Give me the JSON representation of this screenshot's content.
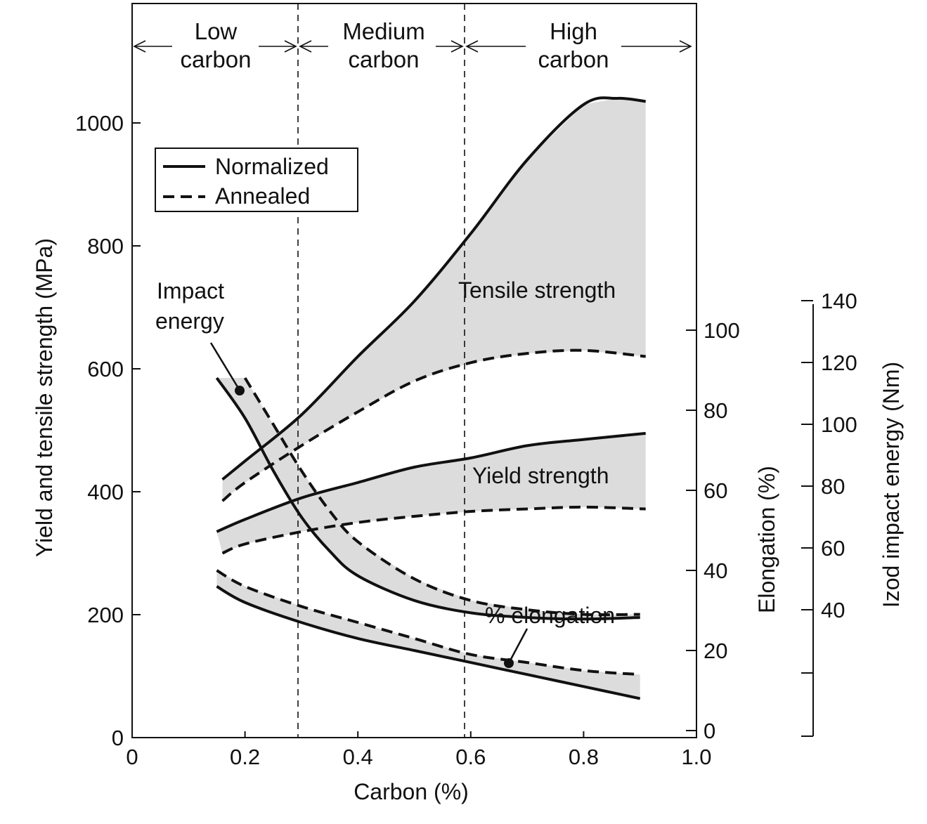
{
  "chart_data": {
    "type": "line",
    "xlabel": "Carbon (%)",
    "ylabel_left": "Yield and tensile strength (MPa)",
    "ylabel_right_1": "Elongation (%)",
    "ylabel_right_2": "Izod impact energy (Nm)",
    "xlim": [
      0,
      1.0
    ],
    "ylim_left": [
      0,
      1100
    ],
    "ylim_elongation": [
      0,
      100
    ],
    "ylim_impact": [
      40,
      140
    ],
    "x_ticks": [
      "0",
      "0.2",
      "0.4",
      "0.6",
      "0.8",
      "1.0"
    ],
    "x_tick_values": [
      0,
      0.2,
      0.4,
      0.6,
      0.8,
      1.0
    ],
    "y_left_ticks": [
      "0",
      "200",
      "400",
      "600",
      "800",
      "1000"
    ],
    "y_left_tick_values": [
      0,
      200,
      400,
      600,
      800,
      1000
    ],
    "y_elong_ticks": [
      "0",
      "20",
      "40",
      "60",
      "80",
      "100"
    ],
    "y_elong_tick_values": [
      0,
      20,
      40,
      60,
      80,
      100
    ],
    "y_impact_ticks": [
      "40",
      "60",
      "80",
      "100",
      "120",
      "140"
    ],
    "y_impact_tick_values": [
      40,
      60,
      80,
      100,
      120,
      140
    ],
    "regions": [
      {
        "label_line1": "Low",
        "label_line2": "carbon",
        "x_start": 0,
        "x_end": 0.3
      },
      {
        "label_line1": "Medium",
        "label_line2": "carbon",
        "x_start": 0.3,
        "x_end": 0.6
      },
      {
        "label_line1": "High",
        "label_line2": "carbon",
        "x_start": 0.6,
        "x_end": 1.0
      }
    ],
    "legend": {
      "placement": "top-left",
      "entries": [
        {
          "label": "Normalized",
          "style": "solid"
        },
        {
          "label": "Annealed",
          "style": "dashed"
        }
      ]
    },
    "annotations": {
      "tensile": "Tensile strength",
      "yield": "Yield strength",
      "elongation": "% elongation",
      "impact_line1": "Impact",
      "impact_line2": "energy"
    },
    "series": [
      {
        "group": "tensile",
        "condition": "Normalized",
        "axis": "left",
        "x": [
          0.16,
          0.2,
          0.3,
          0.4,
          0.5,
          0.6,
          0.7,
          0.8,
          0.86,
          0.91
        ],
        "y": [
          420,
          450,
          525,
          620,
          710,
          820,
          940,
          1030,
          1040,
          1035
        ]
      },
      {
        "group": "tensile",
        "condition": "Annealed",
        "axis": "left",
        "x": [
          0.16,
          0.2,
          0.3,
          0.4,
          0.5,
          0.6,
          0.7,
          0.8,
          0.91
        ],
        "y": [
          385,
          415,
          475,
          530,
          580,
          610,
          625,
          630,
          620
        ]
      },
      {
        "group": "yield",
        "condition": "Normalized",
        "axis": "left",
        "x": [
          0.15,
          0.2,
          0.3,
          0.4,
          0.5,
          0.6,
          0.7,
          0.8,
          0.91
        ],
        "y": [
          335,
          355,
          390,
          415,
          440,
          455,
          475,
          485,
          495
        ]
      },
      {
        "group": "yield",
        "condition": "Annealed",
        "axis": "left",
        "x": [
          0.16,
          0.2,
          0.3,
          0.4,
          0.5,
          0.6,
          0.7,
          0.8,
          0.91
        ],
        "y": [
          300,
          315,
          335,
          350,
          360,
          368,
          372,
          375,
          372
        ]
      },
      {
        "group": "elongation",
        "condition": "Normalized",
        "axis": "elongation",
        "x": [
          0.15,
          0.2,
          0.3,
          0.4,
          0.5,
          0.6,
          0.7,
          0.8,
          0.9
        ],
        "y": [
          36,
          32,
          27,
          23,
          20,
          17,
          14,
          11,
          8
        ]
      },
      {
        "group": "elongation",
        "condition": "Annealed",
        "axis": "elongation",
        "x": [
          0.15,
          0.2,
          0.3,
          0.4,
          0.5,
          0.6,
          0.7,
          0.8,
          0.9
        ],
        "y": [
          40,
          36,
          31,
          27,
          23,
          19,
          17,
          15,
          14
        ]
      },
      {
        "group": "impact",
        "condition": "Normalized",
        "axis": "impact",
        "x": [
          0.15,
          0.2,
          0.25,
          0.3,
          0.35,
          0.4,
          0.5,
          0.6,
          0.7,
          0.8,
          0.9
        ],
        "y": [
          115,
          102,
          85,
          70,
          59,
          51,
          43,
          39,
          37.5,
          37,
          37.5
        ]
      },
      {
        "group": "impact",
        "condition": "Annealed",
        "axis": "impact",
        "x": [
          0.2,
          0.25,
          0.3,
          0.35,
          0.4,
          0.5,
          0.6,
          0.7,
          0.8,
          0.9
        ],
        "y": [
          115,
          100,
          85,
          72,
          62,
          50,
          43,
          40,
          38.5,
          38.5
        ]
      }
    ]
  }
}
